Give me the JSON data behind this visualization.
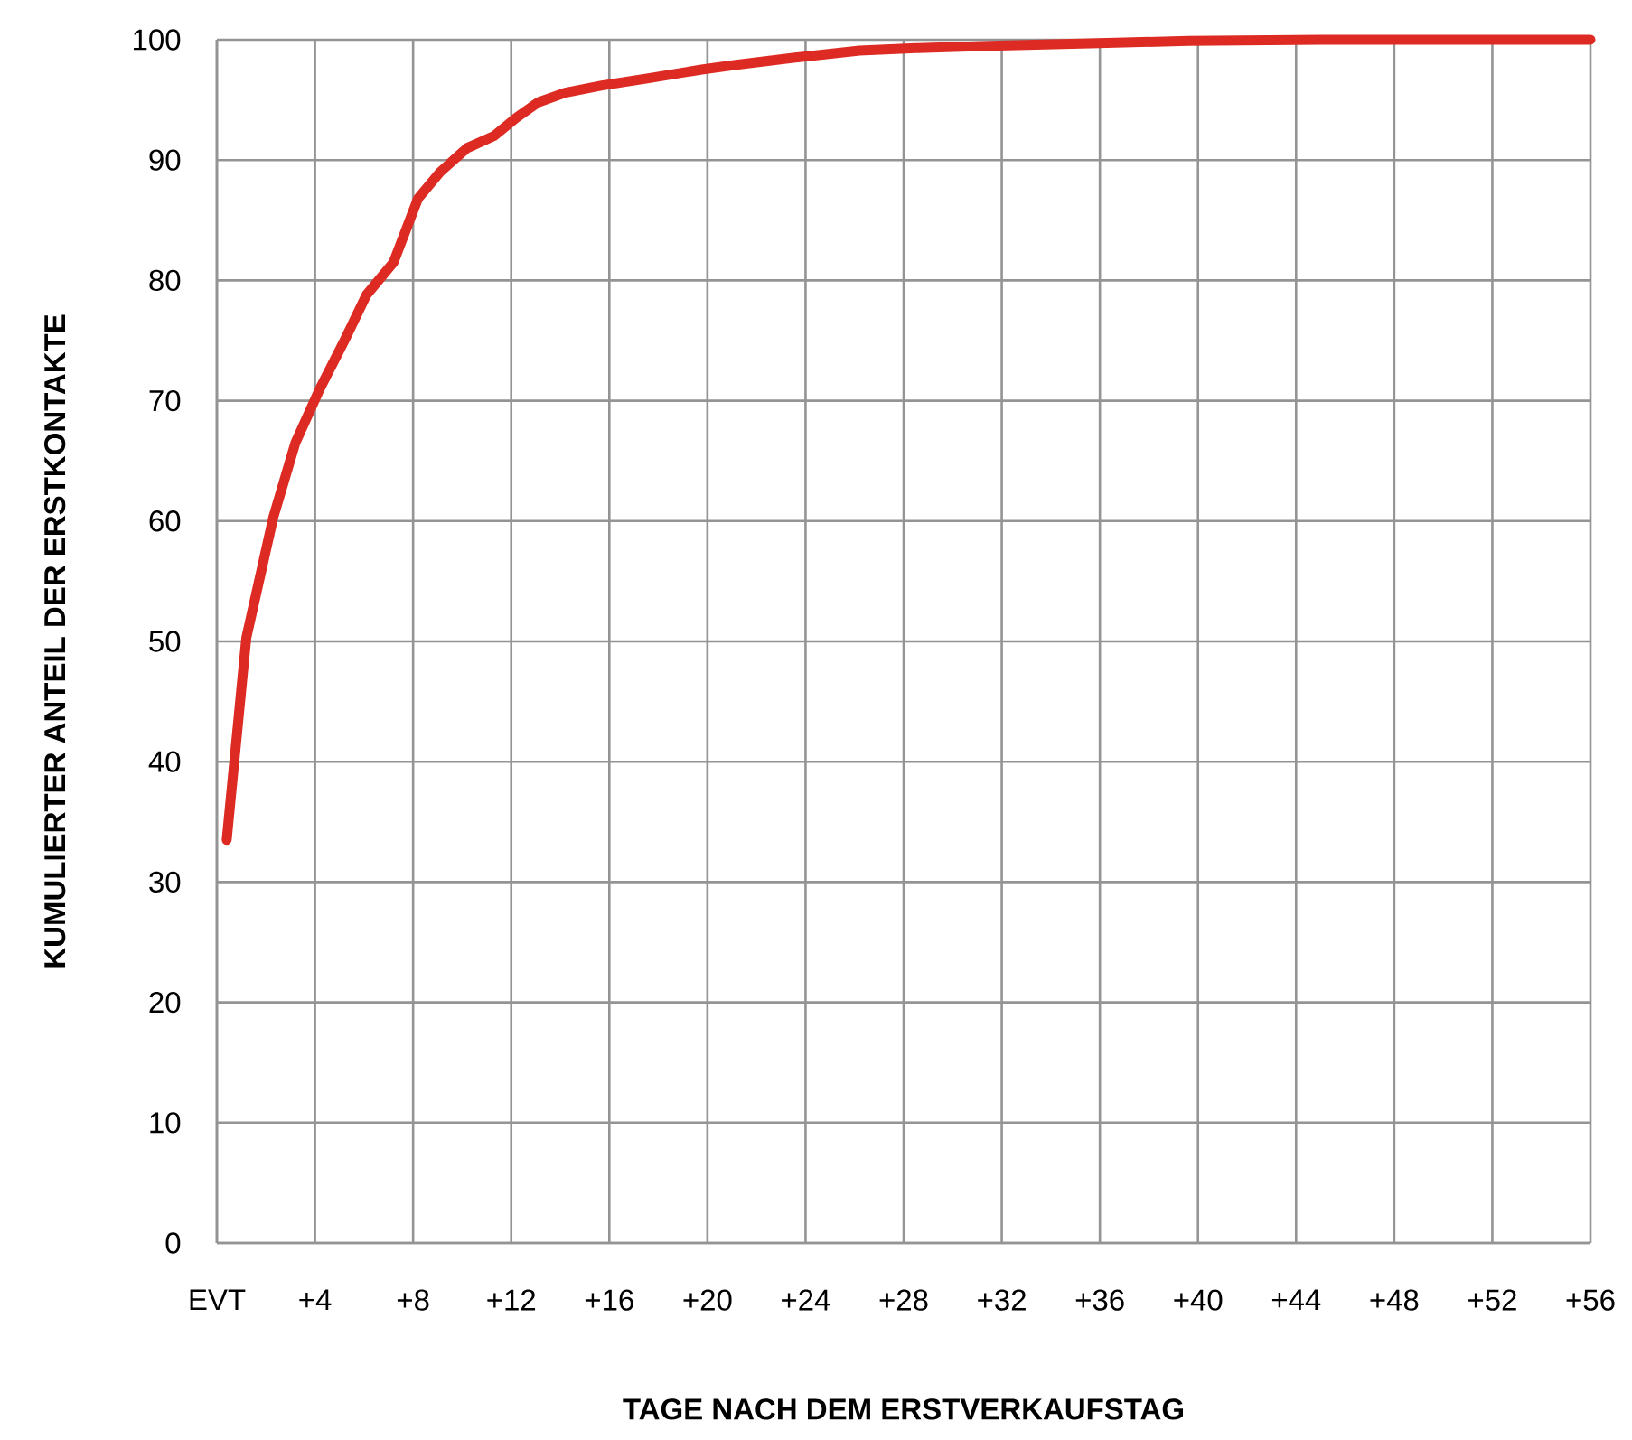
{
  "chart_data": {
    "type": "line",
    "xlabel": "TAGE NACH DEM ERSTVERKAUFSTAG",
    "ylabel": "KUMULIERTER ANTEIL DER ERSTKONTAKTE",
    "x": [
      0.4,
      1.2,
      2.3,
      3.2,
      4.2,
      5.2,
      6.1,
      7.2,
      8.2,
      9.1,
      10.2,
      11.3,
      12.2,
      13.1,
      14.2,
      15.7,
      17.6,
      19.7,
      21.1,
      23.5,
      26.2,
      28.5,
      31.5,
      35.6,
      39.6,
      45,
      50,
      56
    ],
    "series": [
      {
        "color": "#dd2a22",
        "values": [
          33.5,
          50.3,
          60.3,
          66.5,
          71,
          75,
          78.8,
          81.5,
          86.8,
          89,
          91,
          92,
          93.5,
          94.8,
          95.6,
          96.2,
          96.8,
          97.5,
          97.9,
          98.5,
          99.1,
          99.3,
          99.5,
          99.7,
          99.9,
          100,
          100,
          100
        ]
      }
    ],
    "xlim": [
      0,
      56
    ],
    "ylim": [
      0,
      100
    ],
    "xticks": [
      {
        "value": 0,
        "label": "EVT"
      },
      {
        "value": 4,
        "label": "+4"
      },
      {
        "value": 8,
        "label": "+8"
      },
      {
        "value": 12,
        "label": "+12"
      },
      {
        "value": 16,
        "label": "+16"
      },
      {
        "value": 20,
        "label": "+20"
      },
      {
        "value": 24,
        "label": "+24"
      },
      {
        "value": 28,
        "label": "+28"
      },
      {
        "value": 32,
        "label": "+32"
      },
      {
        "value": 36,
        "label": "+36"
      },
      {
        "value": 40,
        "label": "+40"
      },
      {
        "value": 44,
        "label": "+44"
      },
      {
        "value": 48,
        "label": "+48"
      },
      {
        "value": 52,
        "label": "+52"
      },
      {
        "value": 56,
        "label": "+56"
      }
    ],
    "yticks": [
      0,
      10,
      20,
      30,
      40,
      50,
      60,
      70,
      80,
      90,
      100
    ],
    "grid": true,
    "marker": "none",
    "line_style": "solid"
  }
}
